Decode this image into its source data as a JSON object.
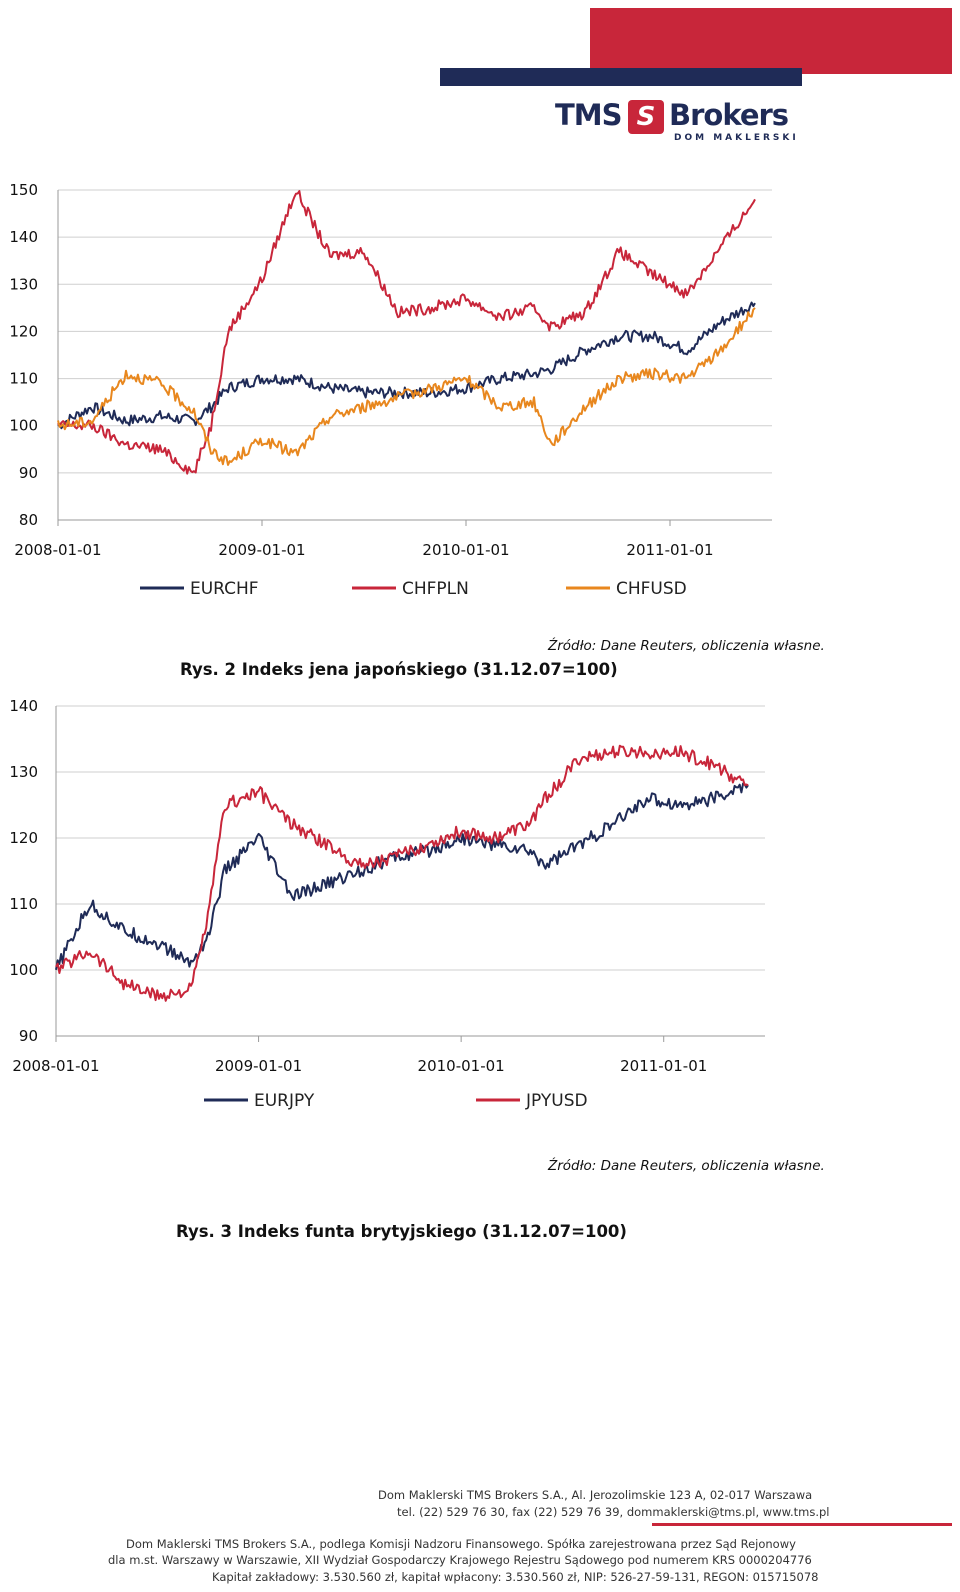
{
  "brand": {
    "tms": "TMS",
    "mark": "S",
    "brokers": "Brokers",
    "tagline": "DOM MAKLERSKI",
    "colors": {
      "red": "#c8263a",
      "navy": "#1f2b57"
    }
  },
  "source1": "Źródło: Dane Reuters, obliczenia własne.",
  "caption2": "Rys. 2 Indeks jena japońskiego (31.12.07=100)",
  "source2": "Źródło: Dane Reuters, obliczenia własne.",
  "caption3": "Rys. 3 Indeks funta brytyjskiego (31.12.07=100)",
  "footer": {
    "line1": "Dom Maklerski TMS Brokers S.A., Al. Jerozolimskie 123 A, 02-017 Warszawa",
    "line2": "tel. (22) 529 76 30, fax (22) 529 76 39, dommaklerski@tms.pl, www.tms.pl",
    "line3": "Dom Maklerski TMS Brokers S.A., podlega Komisji Nadzoru Finansowego. Spółka zarejestrowana przez Sąd Rejonowy",
    "line4": "dla m.st. Warszawy w Warszawie, XII Wydział Gospodarczy Krajowego Rejestru Sądowego pod numerem KRS 0000204776",
    "line5": "Kapitał zakładowy: 3.530.560 zł, kapitał wpłacony: 3.530.560 zł, NIP: 526-27-59-131, REGON: 015715078"
  },
  "chart_data": [
    {
      "type": "line",
      "ylim": [
        80,
        150
      ],
      "yticks": [
        "80",
        "90",
        "100",
        "110",
        "120",
        "130",
        "140",
        "150"
      ],
      "xticks": [
        "2008-01-01",
        "2009-01-01",
        "2010-01-01",
        "2011-01-01"
      ],
      "grid": true,
      "legend_position": "bottom",
      "x": [
        "2008-01",
        "2008-03",
        "2008-05",
        "2008-07",
        "2008-09",
        "2008-10",
        "2008-11",
        "2009-01",
        "2009-03",
        "2009-05",
        "2009-07",
        "2009-09",
        "2009-11",
        "2010-01",
        "2010-03",
        "2010-05",
        "2010-06",
        "2010-08",
        "2010-10",
        "2010-12",
        "2011-02",
        "2011-04",
        "2011-06"
      ],
      "series": [
        {
          "name": "EURCHF",
          "color": "#1f2b57",
          "values": [
            100,
            104,
            101,
            102,
            101,
            104,
            108,
            110,
            110,
            108,
            107,
            107,
            107,
            108,
            110,
            111,
            112,
            116,
            119,
            119,
            116,
            122,
            126
          ]
        },
        {
          "name": "CHFPLN",
          "color": "#c8263a",
          "values": [
            100,
            100,
            96,
            95,
            90,
            100,
            120,
            131,
            150,
            136,
            137,
            124,
            125,
            127,
            123,
            125,
            121,
            124,
            137,
            132,
            128,
            138,
            148
          ]
        },
        {
          "name": "CHFUSD",
          "color": "#e8871e",
          "values": [
            100,
            101,
            111,
            109,
            103,
            95,
            92,
            97,
            94,
            102,
            104,
            106,
            108,
            110,
            104,
            105,
            96,
            104,
            110,
            111,
            110,
            116,
            125
          ]
        }
      ]
    },
    {
      "type": "line",
      "ylim": [
        90,
        140
      ],
      "yticks": [
        "90",
        "100",
        "110",
        "120",
        "130",
        "140"
      ],
      "xticks": [
        "2008-01-01",
        "2009-01-01",
        "2010-01-01",
        "2011-01-01"
      ],
      "grid": true,
      "legend_position": "bottom",
      "x": [
        "2008-01",
        "2008-03",
        "2008-05",
        "2008-07",
        "2008-09",
        "2008-10",
        "2008-11",
        "2009-01",
        "2009-03",
        "2009-05",
        "2009-07",
        "2009-09",
        "2009-11",
        "2010-01",
        "2010-03",
        "2010-05",
        "2010-06",
        "2010-08",
        "2010-10",
        "2010-12",
        "2011-02",
        "2011-04",
        "2011-06"
      ],
      "series": [
        {
          "name": "EURJPY",
          "color": "#1f2b57",
          "values": [
            100,
            110,
            106,
            104,
            101,
            105,
            115,
            120,
            111,
            113,
            115,
            117,
            118,
            120,
            119,
            118,
            116,
            119,
            122,
            126,
            125,
            126,
            128
          ]
        },
        {
          "name": "JPYUSD",
          "color": "#c8263a",
          "values": [
            100,
            103,
            98,
            96,
            97,
            108,
            125,
            127,
            122,
            119,
            116,
            117,
            119,
            121,
            120,
            122,
            126,
            132,
            133,
            133,
            133,
            131,
            128
          ]
        }
      ]
    }
  ]
}
